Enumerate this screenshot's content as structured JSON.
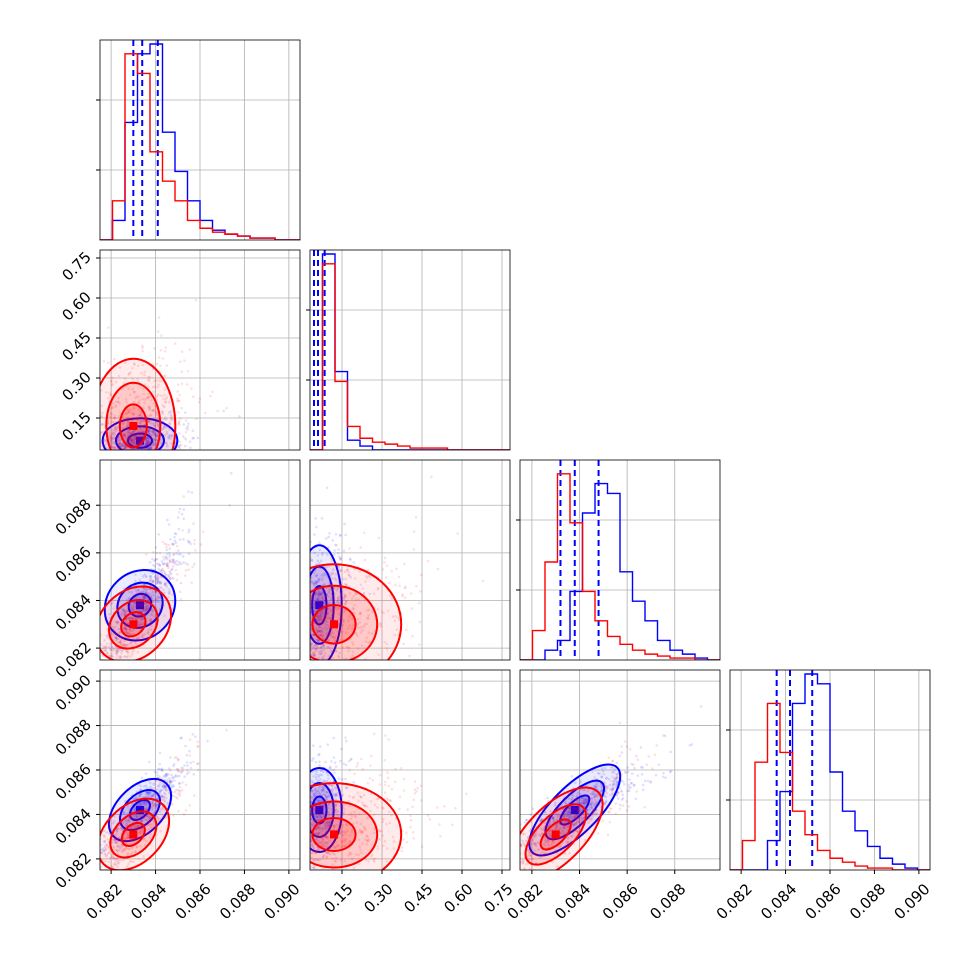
{
  "chart_data": {
    "type": "scatter",
    "subtype": "corner-plot",
    "title": "",
    "n_params": 4,
    "grid": true,
    "legend": "none",
    "colors": {
      "series_a": "#0000ff",
      "series_b": "#ff0000"
    },
    "param_ranges": [
      [
        0.0815,
        0.0905
      ],
      [
        0.03,
        0.78
      ],
      [
        0.0815,
        0.0899
      ],
      [
        0.0815,
        0.0905
      ]
    ],
    "param_ticks": [
      [
        "0.082",
        "0.084",
        "0.086",
        "0.088",
        "0.090"
      ],
      [
        "0.15",
        "0.30",
        "0.45",
        "0.60",
        "0.75"
      ],
      [
        "0.082",
        "0.084",
        "0.086",
        "0.088"
      ],
      [
        "0.082",
        "0.084",
        "0.086",
        "0.088",
        "0.090"
      ]
    ],
    "param_tick_values": [
      [
        0.082,
        0.084,
        0.086,
        0.088,
        0.09
      ],
      [
        0.15,
        0.3,
        0.45,
        0.6,
        0.75
      ],
      [
        0.082,
        0.084,
        0.086,
        0.088
      ],
      [
        0.082,
        0.084,
        0.086,
        0.088,
        0.09
      ]
    ],
    "series": [
      {
        "color": "#0000ff",
        "quantiles": [
          [
            0.083,
            0.0834,
            0.0841
          ],
          [
            0.045,
            0.06,
            0.085
          ],
          [
            0.0832,
            0.0838,
            0.0848
          ],
          [
            0.0836,
            0.0842,
            0.0852
          ]
        ],
        "histograms": [
          [
            0.0,
            0.1,
            0.6,
            0.95,
            1.0,
            0.55,
            0.35,
            0.2,
            0.1,
            0.05,
            0.03,
            0.02,
            0.01,
            0.01,
            0.0,
            0.0
          ],
          [
            0.0,
            1.0,
            0.4,
            0.05,
            0.02,
            0.0,
            0.0,
            0.0,
            0.0,
            0.0,
            0.0,
            0.0,
            0.0,
            0.0,
            0.0,
            0.0
          ],
          [
            0.0,
            0.0,
            0.05,
            0.1,
            0.35,
            0.75,
            0.9,
            0.85,
            0.45,
            0.3,
            0.2,
            0.1,
            0.05,
            0.03,
            0.01,
            0.0
          ],
          [
            0.0,
            0.0,
            0.0,
            0.15,
            0.4,
            0.85,
            1.0,
            0.95,
            0.5,
            0.3,
            0.2,
            0.12,
            0.06,
            0.03,
            0.01,
            0.0
          ]
        ],
        "centers": [
          0.0833,
          0.065,
          0.0838,
          0.0842
        ],
        "spreads": [
          0.0008,
          0.04,
          0.0012,
          0.0009
        ]
      },
      {
        "color": "#ff0000",
        "quantiles": [],
        "histograms": [
          [
            0.0,
            0.2,
            0.95,
            0.85,
            0.45,
            0.3,
            0.2,
            0.1,
            0.06,
            0.04,
            0.03,
            0.02,
            0.01,
            0.01,
            0.0,
            0.0
          ],
          [
            0.0,
            0.95,
            0.35,
            0.12,
            0.06,
            0.04,
            0.03,
            0.02,
            0.01,
            0.01,
            0.01,
            0.0,
            0.0,
            0.0,
            0.0,
            0.0
          ],
          [
            0.0,
            0.15,
            0.5,
            0.95,
            0.7,
            0.35,
            0.2,
            0.12,
            0.08,
            0.05,
            0.03,
            0.02,
            0.01,
            0.01,
            0.0,
            0.0
          ],
          [
            0.0,
            0.15,
            0.55,
            0.85,
            0.6,
            0.3,
            0.18,
            0.1,
            0.06,
            0.04,
            0.02,
            0.01,
            0.01,
            0.0,
            0.0,
            0.0
          ]
        ],
        "centers": [
          0.083,
          0.12,
          0.083,
          0.0831
        ],
        "spreads": [
          0.0009,
          0.12,
          0.0012,
          0.0011
        ]
      }
    ]
  }
}
